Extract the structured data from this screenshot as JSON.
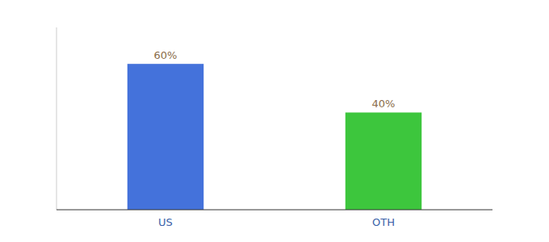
{
  "chart_data": {
    "type": "bar",
    "categories": [
      "US",
      "OTH"
    ],
    "values": [
      60,
      40
    ],
    "value_labels": [
      "60%",
      "40%"
    ],
    "data_labels": true,
    "colors": [
      "#4472db",
      "#3dc63d"
    ],
    "ylim": [
      0,
      75
    ],
    "grid": false,
    "tick_labels": "x"
  }
}
